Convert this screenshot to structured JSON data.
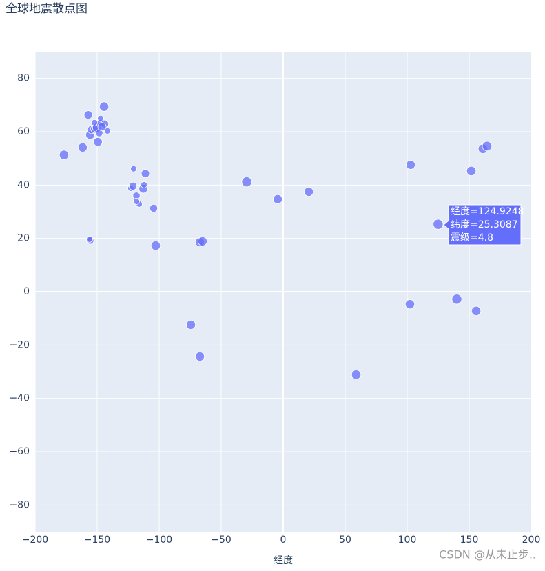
{
  "chart_data": {
    "type": "scatter",
    "title": "全球地震散点图",
    "x_label": "经度",
    "watermark": "CSDN @从未止步..",
    "series": [
      {
        "name": "震级",
        "color": "#636efa",
        "x": [
          -176.7,
          -161.7,
          -157.2,
          -155.6,
          -154.4,
          -151.7,
          -150,
          -147.8,
          -147.2,
          -144.4,
          -143.9,
          -141.7,
          -149.4,
          -148.3,
          -146.1,
          -152.2,
          -120.6,
          -111.1,
          -122.8,
          -121.1,
          -118.3,
          -116.1,
          -112.8,
          -112.2,
          -118.3,
          -104.4,
          -102.8,
          -155.6,
          -156.1,
          -67.2,
          -65,
          -29.4,
          -4.4,
          20.6,
          -74.4,
          -67.2,
          58.9,
          102.8,
          102.2,
          124.9248,
          140,
          151.7,
          155.6,
          161.1,
          164.4
        ],
        "values": [
          51.3,
          54.1,
          66.3,
          58.8,
          60.8,
          61.1,
          61.6,
          63.2,
          65.0,
          69.4,
          62.9,
          60.3,
          56.2,
          59.5,
          61.9,
          63.4,
          46.1,
          44.3,
          38.8,
          39.6,
          36.0,
          32.9,
          38.6,
          40.1,
          33.9,
          31.3,
          17.3,
          19.2,
          19.7,
          18.6,
          18.9,
          41.2,
          34.7,
          37.5,
          -12.4,
          -24.3,
          -31.1,
          47.6,
          -4.7,
          25.3087,
          -2.8,
          45.3,
          -7.2,
          53.6,
          54.6
        ],
        "size": [
          4.5,
          4.4,
          4.0,
          4.3,
          4.0,
          4.2,
          4.5,
          3.5,
          3.0,
          4.5,
          3.8,
          3.0,
          4.2,
          3.5,
          4.0,
          3.0,
          3.0,
          4.0,
          3.0,
          3.8,
          3.5,
          3.0,
          4.2,
          3.0,
          3.0,
          3.8,
          4.5,
          3.5,
          3.0,
          4.4,
          4.4,
          4.8,
          4.4,
          4.4,
          4.4,
          4.4,
          4.5,
          4.3,
          4.5,
          4.8,
          4.8,
          4.5,
          4.5,
          4.6,
          4.6
        ]
      }
    ],
    "xlim": [
      -200,
      200
    ],
    "xticks": [
      {
        "value": -200,
        "label": "−200"
      },
      {
        "value": -150,
        "label": "−150"
      },
      {
        "value": -100,
        "label": "−100"
      },
      {
        "value": -50,
        "label": "−50"
      },
      0,
      50,
      100,
      150,
      200
    ],
    "ylim": [
      -90,
      90
    ],
    "yticks": [
      {
        "value": -80,
        "label": "−80"
      },
      {
        "value": -60,
        "label": "−60"
      },
      {
        "value": -40,
        "label": "−40"
      },
      {
        "value": -20,
        "label": "−20"
      },
      0,
      20,
      40,
      60,
      80
    ],
    "grid": true,
    "tooltip": [
      "经度=124.9248",
      "纬度=25.3087",
      "震级=4.8"
    ]
  }
}
